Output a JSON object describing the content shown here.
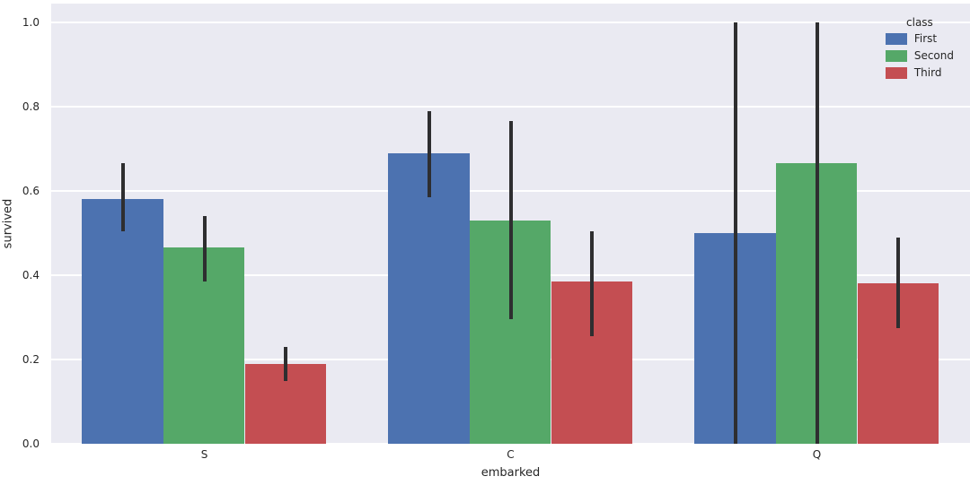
{
  "chart_data": {
    "type": "bar",
    "title": "",
    "xlabel": "embarked",
    "ylabel": "survived",
    "categories": [
      "S",
      "C",
      "Q"
    ],
    "series": [
      {
        "name": "First",
        "color": "#4c72b0",
        "values": [
          0.58,
          0.69,
          0.5
        ],
        "err_low": [
          0.505,
          0.585,
          0.0
        ],
        "err_high": [
          0.665,
          0.79,
          1.0
        ]
      },
      {
        "name": "Second",
        "color": "#55a868",
        "values": [
          0.465,
          0.53,
          0.665
        ],
        "err_low": [
          0.385,
          0.295,
          0.0
        ],
        "err_high": [
          0.54,
          0.765,
          1.0
        ]
      },
      {
        "name": "Third",
        "color": "#c44e52",
        "values": [
          0.19,
          0.385,
          0.38
        ],
        "err_low": [
          0.15,
          0.255,
          0.275
        ],
        "err_high": [
          0.23,
          0.505,
          0.49
        ]
      }
    ],
    "ylim": [
      0.0,
      1.0
    ],
    "yticks": [
      0.0,
      0.2,
      0.4,
      0.6,
      0.8,
      1.0
    ],
    "grid": true,
    "legend_title": "class",
    "legend_position": "upper right"
  },
  "colors": {
    "plot_background": "#eaeaf2",
    "gridline": "#ffffff",
    "error_bar": "#2e2e30",
    "text": "#262626"
  }
}
